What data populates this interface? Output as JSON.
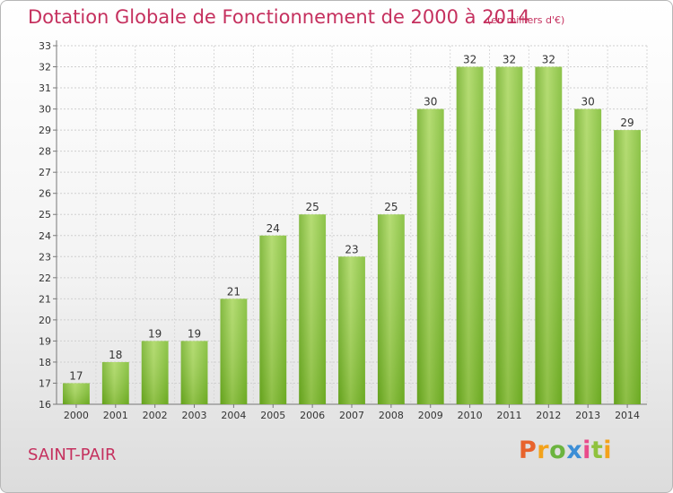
{
  "header": {
    "title": "Dotation Globale de Fonctionnement de 2000 à 2014",
    "subtitle": "(en milliers d'€)"
  },
  "footer": {
    "commune": "SAINT-PAIR",
    "logo_letters": [
      {
        "char": "P",
        "color": "#e8632c"
      },
      {
        "char": "r",
        "color": "#f3a21b"
      },
      {
        "char": "o",
        "color": "#6cb43f"
      },
      {
        "char": "x",
        "color": "#3c8ed6"
      },
      {
        "char": "i",
        "color": "#e94b8a"
      },
      {
        "char": "t",
        "color": "#8fc23d"
      },
      {
        "char": "i",
        "color": "#f3a21b"
      }
    ]
  },
  "chart_data": {
    "type": "bar",
    "title": "Dotation Globale de Fonctionnement de 2000 à 2014",
    "subtitle": "(en milliers d'€)",
    "categories": [
      "2000",
      "2001",
      "2002",
      "2003",
      "2004",
      "2005",
      "2006",
      "2007",
      "2008",
      "2009",
      "2010",
      "2011",
      "2012",
      "2013",
      "2014"
    ],
    "values": [
      17,
      18,
      19,
      19,
      21,
      24,
      25,
      23,
      25,
      30,
      32,
      32,
      32,
      30,
      29
    ],
    "ylim": [
      16,
      33
    ],
    "yticks": [
      16,
      17,
      18,
      19,
      20,
      21,
      22,
      23,
      24,
      25,
      26,
      27,
      28,
      29,
      30,
      31,
      32,
      33
    ],
    "grid": true,
    "bar_color": "#7fbf2f",
    "bar_color_light": "#a6d65a",
    "xlabel": "",
    "ylabel": ""
  }
}
